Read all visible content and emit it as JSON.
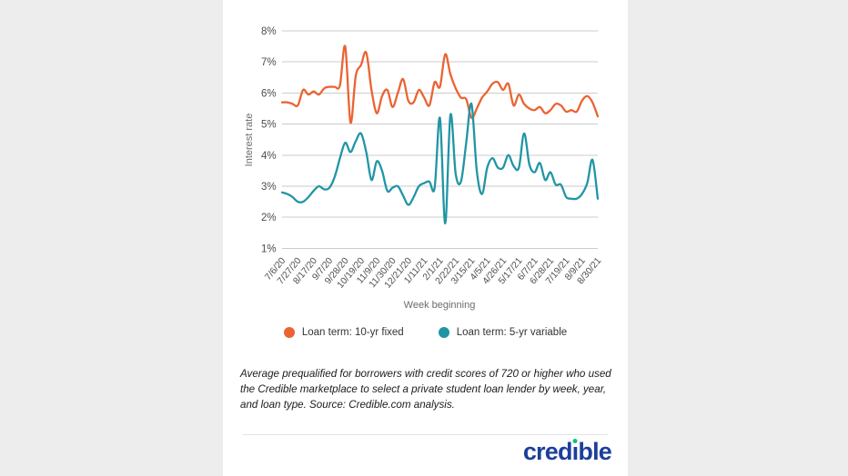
{
  "colors": {
    "background": "#ededed",
    "card_background": "#ffffff",
    "gridline": "#cbcbcb",
    "orange_series": "#eb6333",
    "teal_series": "#2095a5",
    "logo_blue": "#1c3f9c",
    "logo_dot_green": "#17bf77"
  },
  "chart_data": {
    "type": "line",
    "title": "",
    "xlabel": "Week beginning",
    "ylabel": "Interest rate",
    "y_unit": "%",
    "ylim": [
      1,
      8
    ],
    "y_tick_labels": [
      "8%",
      "7%",
      "6%",
      "5%",
      "4%",
      "3%",
      "2%",
      "1%"
    ],
    "grid": "horizontal",
    "legend_position": "bottom",
    "x": [
      "7/6/20",
      "7/13/20",
      "7/20/20",
      "7/27/20",
      "8/3/20",
      "8/10/20",
      "8/17/20",
      "8/24/20",
      "8/31/20",
      "9/7/20",
      "9/14/20",
      "9/21/20",
      "9/28/20",
      "10/5/20",
      "10/12/20",
      "10/19/20",
      "10/26/20",
      "11/2/20",
      "11/9/20",
      "11/16/20",
      "11/23/20",
      "11/30/20",
      "12/7/20",
      "12/14/20",
      "12/21/20",
      "12/28/20",
      "1/4/21",
      "1/11/21",
      "1/18/21",
      "1/25/21",
      "2/1/21",
      "2/8/21",
      "2/15/21",
      "2/22/21",
      "3/1/21",
      "3/8/21",
      "3/15/21",
      "3/22/21",
      "3/29/21",
      "4/5/21",
      "4/12/21",
      "4/19/21",
      "4/26/21",
      "5/3/21",
      "5/10/21",
      "5/17/21",
      "5/24/21",
      "5/31/21",
      "6/7/21",
      "6/14/21",
      "6/21/21",
      "6/28/21",
      "7/5/21",
      "7/12/21",
      "7/19/21",
      "7/26/21",
      "8/2/21",
      "8/9/21",
      "8/16/21",
      "8/23/21",
      "8/30/21"
    ],
    "x_ticks_shown": [
      "7/6/20",
      "7/27/20",
      "8/17/20",
      "9/7/20",
      "9/28/20",
      "10/19/20",
      "11/9/20",
      "11/30/20",
      "12/21/20",
      "1/11/21",
      "2/1/21",
      "2/22/21",
      "3/15/21",
      "4/5/21",
      "4/26/21",
      "5/17/21",
      "6/7/21",
      "6/28/21",
      "7/19/21",
      "8/9/21",
      "8/30/21"
    ],
    "series": [
      {
        "name": "Loan term: 10-yr fixed",
        "color": "#eb6333",
        "values": [
          5.7,
          5.7,
          5.65,
          5.6,
          6.1,
          5.95,
          6.05,
          5.95,
          6.15,
          6.2,
          6.2,
          6.25,
          7.5,
          5.05,
          6.55,
          6.9,
          7.3,
          6.1,
          5.35,
          5.9,
          6.1,
          5.55,
          6.0,
          6.45,
          5.75,
          5.7,
          6.1,
          5.85,
          5.6,
          6.35,
          6.2,
          7.25,
          6.6,
          6.15,
          5.85,
          5.8,
          5.2,
          5.5,
          5.85,
          6.05,
          6.3,
          6.35,
          6.1,
          6.3,
          5.6,
          5.95,
          5.65,
          5.5,
          5.45,
          5.55,
          5.35,
          5.45,
          5.65,
          5.6,
          5.4,
          5.45,
          5.4,
          5.75,
          5.9,
          5.7,
          5.25
        ]
      },
      {
        "name": "Loan term: 5-yr variable",
        "color": "#2095a5",
        "values": [
          2.8,
          2.75,
          2.65,
          2.5,
          2.5,
          2.65,
          2.85,
          3.0,
          2.9,
          2.95,
          3.3,
          3.9,
          4.4,
          4.1,
          4.45,
          4.7,
          4.1,
          3.2,
          3.8,
          3.5,
          2.85,
          2.95,
          3.0,
          2.7,
          2.4,
          2.65,
          3.0,
          3.1,
          3.15,
          2.95,
          5.2,
          1.8,
          5.3,
          3.4,
          3.15,
          4.4,
          5.65,
          3.5,
          2.75,
          3.6,
          3.9,
          3.6,
          3.6,
          4.0,
          3.65,
          3.6,
          4.7,
          3.7,
          3.45,
          3.75,
          3.2,
          3.45,
          3.05,
          3.05,
          2.65,
          2.6,
          2.6,
          2.75,
          3.1,
          3.85,
          2.6
        ]
      }
    ]
  },
  "legend": {
    "items": [
      {
        "label": "Loan term: 10-yr fixed",
        "color": "#eb6333"
      },
      {
        "label": "Loan term: 5-yr variable",
        "color": "#2095a5"
      }
    ]
  },
  "caption": "Average prequalified for borrowers with credit scores of 720 or higher who used the Credible marketplace to select a private student loan lender by week, year, and loan type. Source: Credible.com analysis.",
  "logo": {
    "text": "credible",
    "prefix": "cred",
    "i_char": "ı",
    "suffix": "ble",
    "color": "#1c3f9c",
    "dot_color": "#17bf77"
  }
}
